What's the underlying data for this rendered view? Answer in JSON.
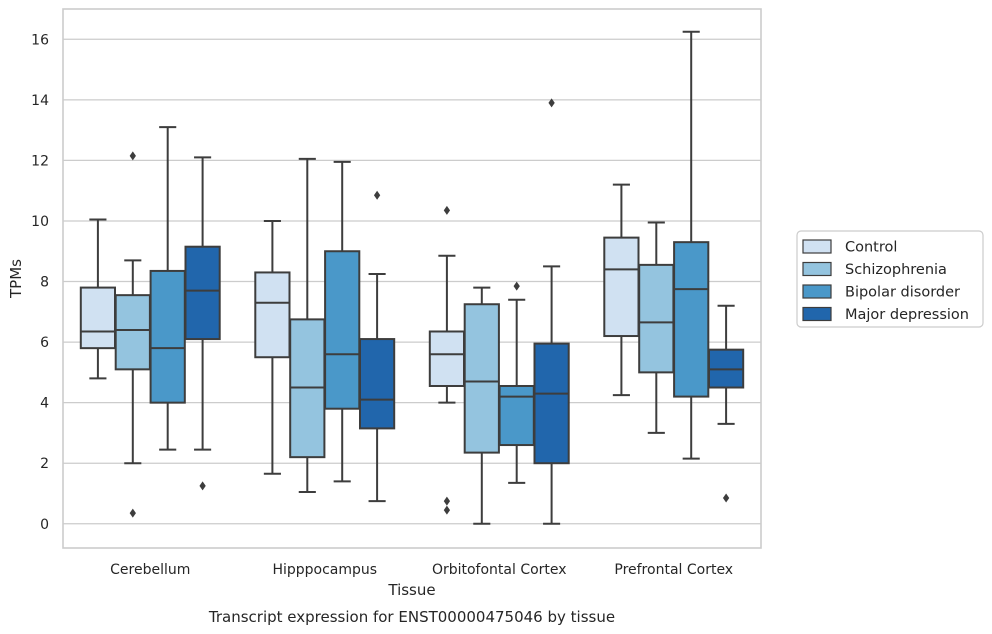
{
  "chart_data": {
    "type": "box",
    "xlabel": "Tissue",
    "ylabel": "TPMs",
    "caption": "Transcript expression for ENST00000475046 by tissue",
    "ylim": [
      -0.8,
      17
    ],
    "yticks": [
      0,
      2,
      4,
      6,
      8,
      10,
      12,
      14,
      16
    ],
    "grid": true,
    "legend_position": "right",
    "categories": [
      "Cerebellum",
      "Hipppocampus",
      "Orbitofontal Cortex",
      "Prefrontal Cortex"
    ],
    "series": [
      {
        "name": "Control",
        "color": "#d0e1f2",
        "boxes": [
          {
            "whislo": 4.8,
            "q1": 5.8,
            "med": 6.35,
            "q3": 7.8,
            "whishi": 10.05,
            "fliers": []
          },
          {
            "whislo": 1.65,
            "q1": 5.5,
            "med": 7.3,
            "q3": 8.3,
            "whishi": 10.0,
            "fliers": []
          },
          {
            "whislo": 4.0,
            "q1": 4.55,
            "med": 5.6,
            "q3": 6.35,
            "whishi": 8.85,
            "fliers": [
              10.35,
              0.75,
              0.45
            ]
          },
          {
            "whislo": 4.25,
            "q1": 6.2,
            "med": 8.4,
            "q3": 9.45,
            "whishi": 11.2,
            "fliers": []
          }
        ]
      },
      {
        "name": "Schizophrenia",
        "color": "#94c4df",
        "boxes": [
          {
            "whislo": 2.0,
            "q1": 5.1,
            "med": 6.4,
            "q3": 7.55,
            "whishi": 8.7,
            "fliers": [
              12.15,
              0.35
            ]
          },
          {
            "whislo": 1.05,
            "q1": 2.2,
            "med": 4.5,
            "q3": 6.75,
            "whishi": 12.05,
            "fliers": []
          },
          {
            "whislo": 0.0,
            "q1": 2.35,
            "med": 4.7,
            "q3": 7.25,
            "whishi": 7.8,
            "fliers": []
          },
          {
            "whislo": 3.0,
            "q1": 5.0,
            "med": 6.65,
            "q3": 8.55,
            "whishi": 9.95,
            "fliers": []
          }
        ]
      },
      {
        "name": "Bipolar disorder",
        "color": "#4a98c9",
        "boxes": [
          {
            "whislo": 2.45,
            "q1": 4.0,
            "med": 5.8,
            "q3": 8.35,
            "whishi": 13.1,
            "fliers": []
          },
          {
            "whislo": 1.4,
            "q1": 3.8,
            "med": 5.6,
            "q3": 9.0,
            "whishi": 11.95,
            "fliers": []
          },
          {
            "whislo": 1.35,
            "q1": 2.6,
            "med": 4.2,
            "q3": 4.55,
            "whishi": 7.4,
            "fliers": [
              7.85
            ]
          },
          {
            "whislo": 2.15,
            "q1": 4.2,
            "med": 7.75,
            "q3": 9.3,
            "whishi": 16.25,
            "fliers": []
          }
        ]
      },
      {
        "name": "Major depression",
        "color": "#2166ac",
        "boxes": [
          {
            "whislo": 2.45,
            "q1": 6.1,
            "med": 7.7,
            "q3": 9.15,
            "whishi": 12.1,
            "fliers": [
              1.25
            ]
          },
          {
            "whislo": 0.75,
            "q1": 3.15,
            "med": 4.1,
            "q3": 6.1,
            "whishi": 8.25,
            "fliers": [
              10.85
            ]
          },
          {
            "whislo": 0.0,
            "q1": 2.0,
            "med": 4.3,
            "q3": 5.95,
            "whishi": 8.5,
            "fliers": [
              13.9
            ]
          },
          {
            "whislo": 3.3,
            "q1": 4.5,
            "med": 5.1,
            "q3": 5.75,
            "whishi": 7.2,
            "fliers": [
              0.85
            ]
          }
        ]
      }
    ]
  }
}
